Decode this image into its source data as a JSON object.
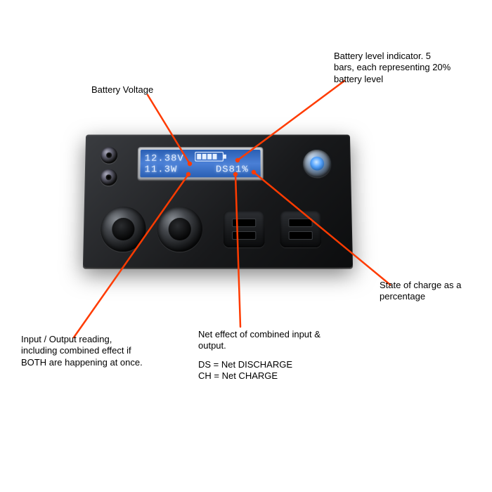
{
  "colors": {
    "leader": "#ff3b00",
    "lcd_bg": "#3d72c9",
    "lcd_text": "#e6f0ff",
    "panel_dark": "#18191b"
  },
  "lcd": {
    "voltage": "12.38V",
    "power": "11.3W",
    "mode": "DS",
    "soc": "81%",
    "battery_bars_filled": 4,
    "battery_bars_total": 5
  },
  "labels": {
    "voltage": "Battery Voltage",
    "bars": "Battery level indicator.  5 bars, each representing 20% battery level",
    "soc": "State of charge as a percentage",
    "io": "Input / Output reading, including combined effect if BOTH are happening at once.",
    "net_line1": "Net effect of combined input & output.",
    "net_line2": "DS = Net DISCHARGE",
    "net_line3": "CH = Net CHARGE"
  },
  "callouts": {
    "leader_stroke_width": 2.5,
    "lines": [
      {
        "from": [
          210,
          135
        ],
        "to": [
          270,
          233
        ]
      },
      {
        "from": [
          490,
          115
        ],
        "to": [
          338,
          228
        ]
      },
      {
        "from": [
          555,
          405
        ],
        "to": [
          361,
          245
        ]
      },
      {
        "from": [
          342,
          465
        ],
        "to": [
          335,
          248
        ]
      },
      {
        "from": [
          105,
          480
        ],
        "to": [
          268,
          248
        ]
      }
    ]
  }
}
